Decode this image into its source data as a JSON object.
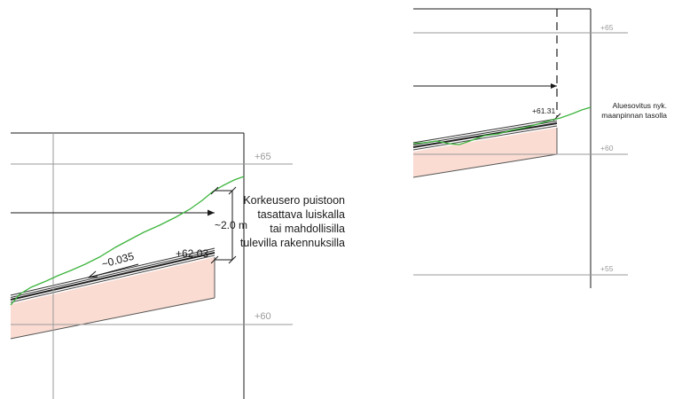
{
  "left_section": {
    "levels": [
      "+65",
      "+60"
    ],
    "note_lines": [
      "Korkeusero puistoon",
      "tasattava luiskalla",
      "tai mahdollisilla",
      "tulevilla rakennuksilla"
    ],
    "height_dimension": "~2.0 m",
    "slope_label": "~0.035",
    "elevation_label": "+62.03"
  },
  "right_section": {
    "levels": [
      "+65",
      "+60",
      "+55"
    ],
    "note_lines": [
      "Aluesovitus nyk.",
      "maanpinnan tasolla"
    ],
    "elevation_label": "+61.31"
  },
  "colors": {
    "fill": "#fadcd2",
    "ground": "#3db53d",
    "line": "#1a1a1a",
    "gridline": "#9a9a9a"
  }
}
